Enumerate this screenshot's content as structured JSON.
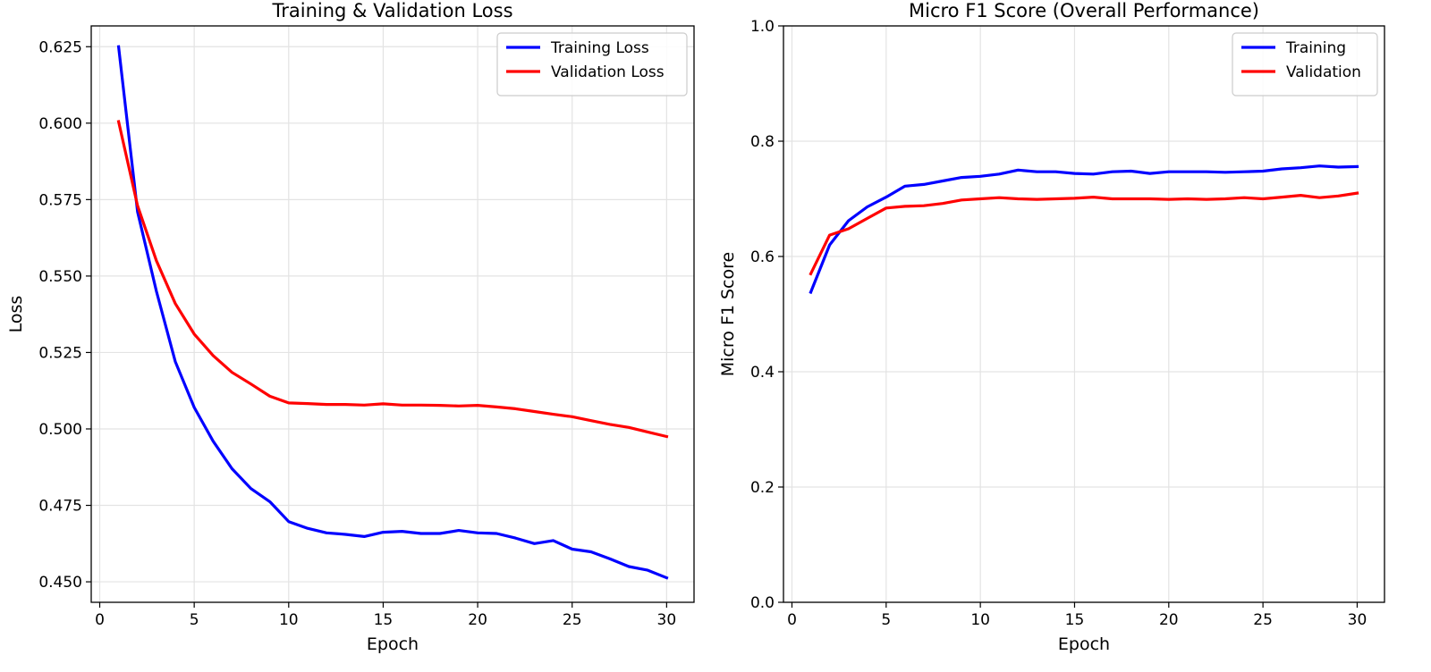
{
  "chart_data": [
    {
      "type": "line",
      "title": "Training & Validation Loss",
      "xlabel": "Epoch",
      "ylabel": "Loss",
      "xlim": [
        -0.45,
        31.45
      ],
      "ylim": [
        0.4433,
        0.6318
      ],
      "xticks": [
        0,
        5,
        10,
        15,
        20,
        25,
        30
      ],
      "yticks": [
        0.45,
        0.475,
        0.5,
        0.525,
        0.55,
        0.575,
        0.6,
        0.625
      ],
      "ytick_labels": [
        "0.450",
        "0.475",
        "0.500",
        "0.525",
        "0.550",
        "0.575",
        "0.600",
        "0.625"
      ],
      "grid": true,
      "legend_position": "top-right",
      "x": [
        1,
        2,
        3,
        4,
        5,
        6,
        7,
        8,
        9,
        10,
        11,
        12,
        13,
        14,
        15,
        16,
        17,
        18,
        19,
        20,
        21,
        22,
        23,
        24,
        25,
        26,
        27,
        28,
        29,
        30
      ],
      "series": [
        {
          "name": "Training Loss",
          "color": "#0000ff",
          "values": [
            0.625,
            0.571,
            0.545,
            0.522,
            0.507,
            0.496,
            0.487,
            0.4805,
            0.4762,
            0.4697,
            0.4675,
            0.466,
            0.4655,
            0.4648,
            0.4662,
            0.4665,
            0.4658,
            0.4658,
            0.4668,
            0.466,
            0.4658,
            0.4643,
            0.4625,
            0.4635,
            0.4607,
            0.4598,
            0.4575,
            0.455,
            0.4538,
            0.4513
          ]
        },
        {
          "name": "Validation Loss",
          "color": "#ff0000",
          "values": [
            0.6005,
            0.573,
            0.555,
            0.541,
            0.531,
            0.524,
            0.5185,
            0.5147,
            0.5107,
            0.5085,
            0.5083,
            0.508,
            0.508,
            0.5078,
            0.5082,
            0.5078,
            0.5078,
            0.5077,
            0.5075,
            0.5077,
            0.5072,
            0.5066,
            0.5057,
            0.5048,
            0.504,
            0.5027,
            0.5015,
            0.5005,
            0.499,
            0.4975
          ]
        }
      ]
    },
    {
      "type": "line",
      "title": "Micro F1 Score (Overall Performance)",
      "xlabel": "Epoch",
      "ylabel": "Micro F1 Score",
      "xlim": [
        -0.45,
        31.45
      ],
      "ylim": [
        0.0,
        1.0
      ],
      "xticks": [
        0,
        5,
        10,
        15,
        20,
        25,
        30
      ],
      "yticks": [
        0.0,
        0.2,
        0.4,
        0.6,
        0.8,
        1.0
      ],
      "ytick_labels": [
        "0.0",
        "0.2",
        "0.4",
        "0.6",
        "0.8",
        "1.0"
      ],
      "grid": true,
      "legend_position": "top-right",
      "x": [
        1,
        2,
        3,
        4,
        5,
        6,
        7,
        8,
        9,
        10,
        11,
        12,
        13,
        14,
        15,
        16,
        17,
        18,
        19,
        20,
        21,
        22,
        23,
        24,
        25,
        26,
        27,
        28,
        29,
        30
      ],
      "series": [
        {
          "name": "Training",
          "color": "#0000ff",
          "values": [
            0.538,
            0.62,
            0.662,
            0.686,
            0.703,
            0.722,
            0.725,
            0.731,
            0.737,
            0.739,
            0.743,
            0.75,
            0.747,
            0.747,
            0.744,
            0.743,
            0.747,
            0.748,
            0.744,
            0.747,
            0.747,
            0.747,
            0.746,
            0.747,
            0.748,
            0.752,
            0.754,
            0.757,
            0.755,
            0.756
          ]
        },
        {
          "name": "Validation",
          "color": "#ff0000",
          "values": [
            0.57,
            0.637,
            0.648,
            0.666,
            0.684,
            0.687,
            0.688,
            0.692,
            0.698,
            0.7,
            0.702,
            0.7,
            0.699,
            0.7,
            0.701,
            0.703,
            0.7,
            0.7,
            0.7,
            0.699,
            0.7,
            0.699,
            0.7,
            0.702,
            0.7,
            0.703,
            0.706,
            0.702,
            0.705,
            0.71
          ]
        }
      ]
    }
  ]
}
